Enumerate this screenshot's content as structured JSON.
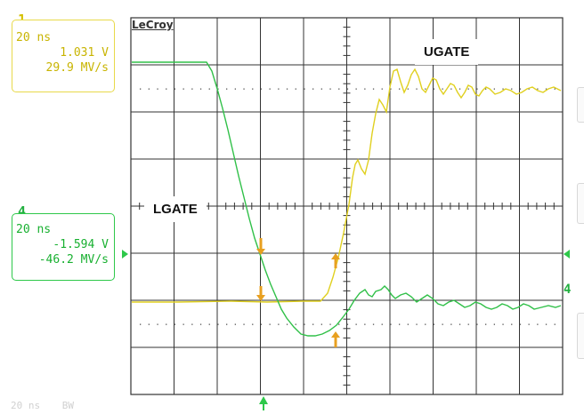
{
  "brand": "LeCroy",
  "channel1": {
    "number": "1",
    "timebase": "20 ns",
    "value": "1.031 V",
    "slew": "29.9 MV/s",
    "color": "#e8d94a"
  },
  "channel4": {
    "number": "4",
    "timebase": "20 ns",
    "value": "-1.594 V",
    "slew": "-46.2 MV/s",
    "color": "#2ec84a"
  },
  "labels": {
    "ugate": "UGATE",
    "lgate": "LGATE"
  },
  "status": {
    "timebase": "20 ns",
    "bw": "BW"
  },
  "colors": {
    "grid": "#333333",
    "cursor": "#e8a020"
  },
  "chart_data": {
    "type": "line",
    "series": [
      {
        "name": "UGATE"
      },
      {
        "name": "LGATE"
      }
    ],
    "grid": true
  }
}
